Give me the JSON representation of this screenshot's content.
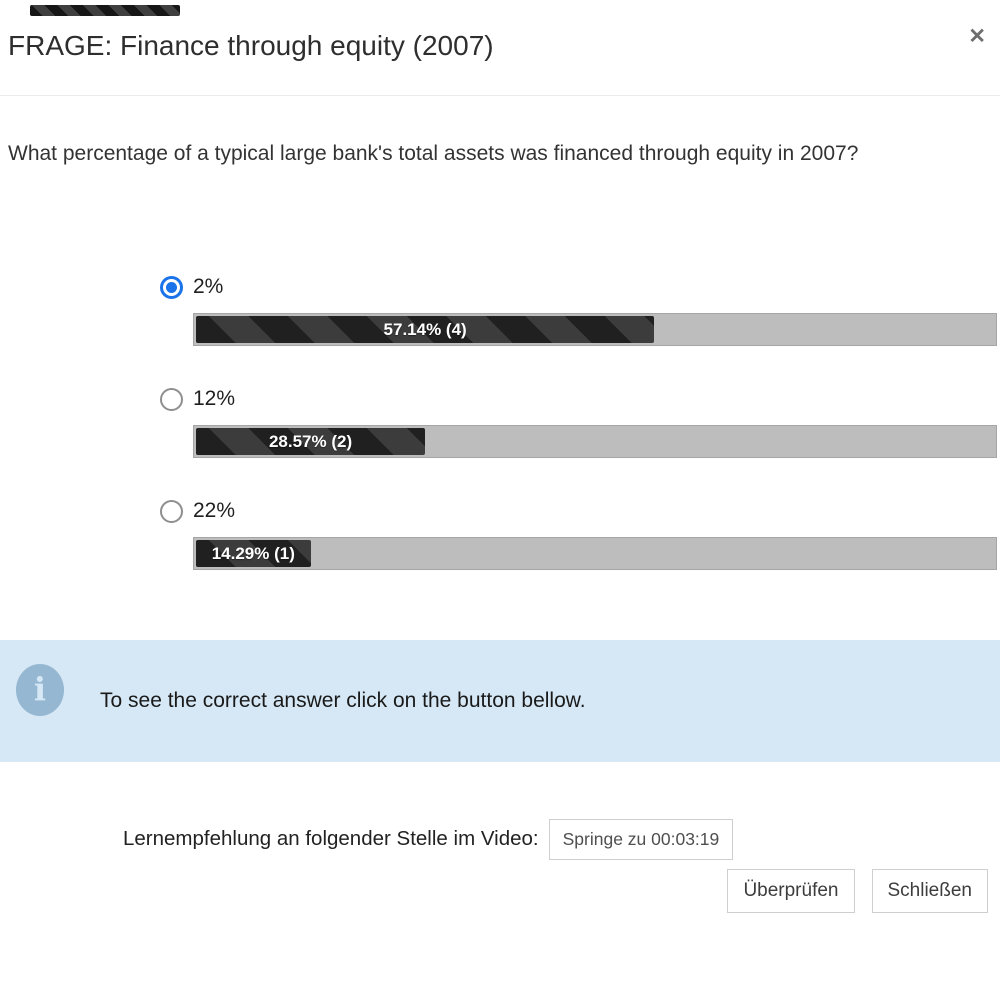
{
  "modal": {
    "title": "FRAGE: Finance through equity (2007)",
    "question": "What percentage of a typical large bank's total assets was financed through equity in 2007?"
  },
  "options": [
    {
      "label": "2%",
      "selected": true,
      "result": "57.14% (4)",
      "percent": 57.14,
      "votes": 4
    },
    {
      "label": "12%",
      "selected": false,
      "result": "28.57% (2)",
      "percent": 28.57,
      "votes": 2
    },
    {
      "label": "22%",
      "selected": false,
      "result": "14.29% (1)",
      "percent": 14.29,
      "votes": 1
    }
  ],
  "info": {
    "text": "To see the correct answer click on the button bellow."
  },
  "footer": {
    "hint_label": "Lernempfehlung an folgender Stelle im Video:",
    "jump_button": "Springe zu 00:03:19",
    "check_button": "Überprüfen",
    "close_button": "Schließen"
  },
  "icons": {
    "close": "✕",
    "info": "i"
  },
  "colors": {
    "accent_radio": "#1a73e8",
    "info_background": "#d6e8f5",
    "info_icon": "#95b7d1",
    "bar_track": "#bdbdbd",
    "bar_stripe_dark": "#202020",
    "bar_stripe_light": "#3c3c3c"
  }
}
